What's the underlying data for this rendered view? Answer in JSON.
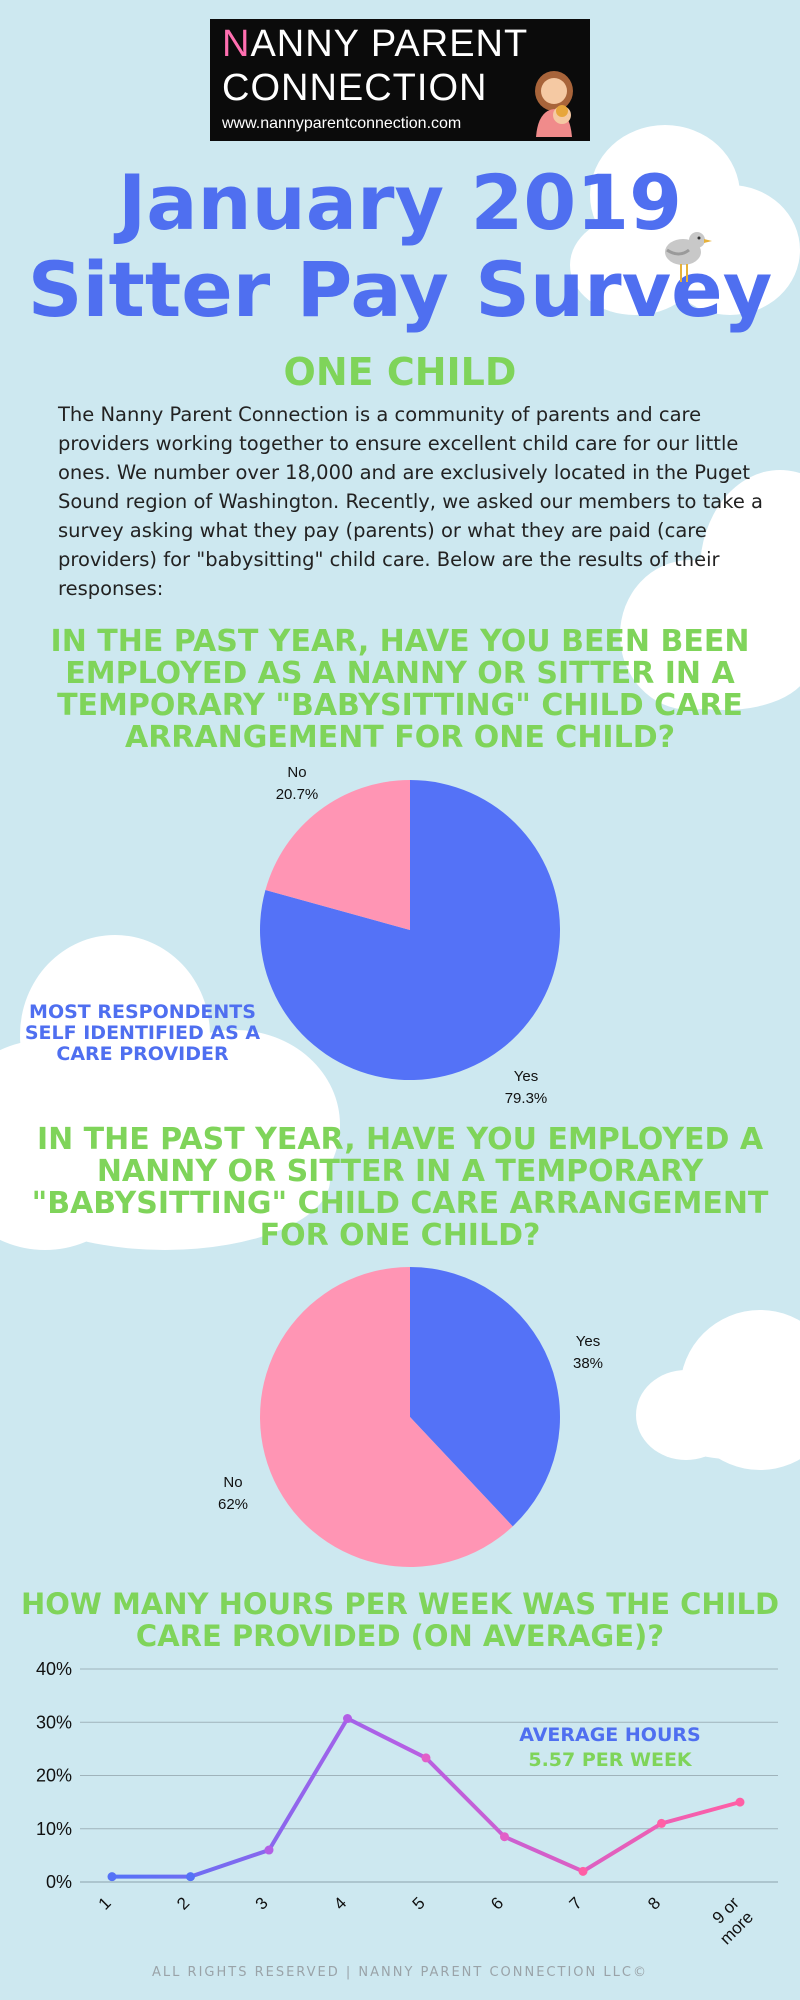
{
  "logo": {
    "line1_first": "N",
    "line1_rest": "ANNY PARENT",
    "line2": "CONNECTION",
    "url": "www.nannyparentconnection.com"
  },
  "title_line1": "January 2019",
  "title_line2": "Sitter Pay Survey",
  "section": "ONE CHILD",
  "intro": "The Nanny Parent Connection is a community of parents and care providers working together to ensure excellent child care for our little ones. We number over 18,000 and are exclusively located in the Puget Sound region of Washington. Recently, we asked our members to take a survey asking what they pay (parents) or what they are paid (care providers) for \"babysitting\" child care. Below are the results of their responses:",
  "q1": "In the past year, have you been been employed as a nanny or sitter in a temporary \"babysitting\" child care arrangement for one child?",
  "q1_note": "MOST RESPONDENTS SELF IDENTIFIED AS A CARE PROVIDER",
  "q2": "In the past year, have you employed a nanny or sitter in a temporary \"babysitting\" child care arrangement for one child?",
  "q3": "How many hours per week was the child care provided (on average)?",
  "avg_label": "AVERAGE HOURS",
  "avg_value": "5.57 PER WEEK",
  "footer": "ALL RIGHTS RESERVED | NANNY PARENT CONNECTION LLC©",
  "colors": {
    "blue": "#4f6ff0",
    "pink": "#ff95b4",
    "green": "#7fd45a",
    "purple": "#b25fe6"
  },
  "chart_data": [
    {
      "type": "pie",
      "slices": [
        {
          "label": "Yes",
          "value": 79.3,
          "pct_label": "79.3%",
          "color": "#5472f7"
        },
        {
          "label": "No",
          "value": 20.7,
          "pct_label": "20.7%",
          "color": "#ff95b4"
        }
      ]
    },
    {
      "type": "pie",
      "slices": [
        {
          "label": "Yes",
          "value": 38,
          "pct_label": "38%",
          "color": "#5472f7"
        },
        {
          "label": "No",
          "value": 62,
          "pct_label": "62%",
          "color": "#ff95b4"
        }
      ]
    },
    {
      "type": "line",
      "categories": [
        "1",
        "2",
        "3",
        "4",
        "5",
        "6",
        "7",
        "8",
        "9 or more"
      ],
      "values": [
        1,
        1,
        6,
        30.7,
        23.3,
        8.5,
        2,
        11,
        15
      ],
      "ylim": [
        0,
        40
      ],
      "yticks": [
        "0%",
        "10%",
        "20%",
        "30%",
        "40%"
      ],
      "grid": true
    }
  ]
}
